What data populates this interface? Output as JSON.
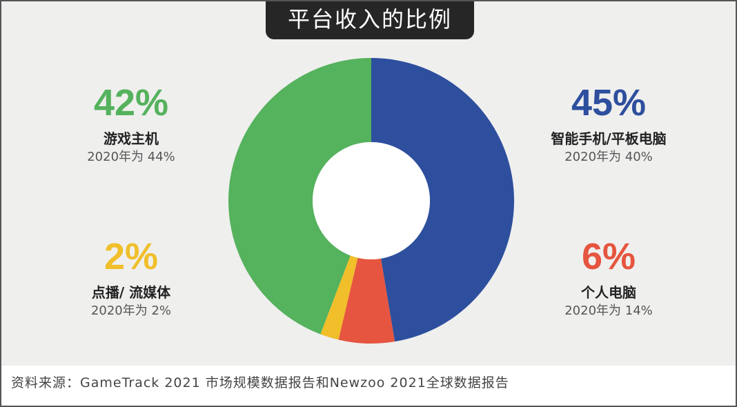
{
  "chart_data": {
    "type": "pie",
    "donut": true,
    "title": "平台收入的比例",
    "slices": [
      {
        "label": "智能手机/平板电脑",
        "value": 45,
        "prev_text": "2020年为 40%",
        "color": "#2e4f9e"
      },
      {
        "label": "个人电脑",
        "value": 6,
        "prev_text": "2020年为 14%",
        "color": "#e6553f"
      },
      {
        "label": "点播/ 流媒体",
        "value": 2,
        "prev_text": "2020年为 2%",
        "color": "#f0bf2a"
      },
      {
        "label": "游戏主机",
        "value": 42,
        "prev_text": "2020年为 44%",
        "color": "#55b25d"
      }
    ],
    "value_labels": [
      "45%",
      "6%",
      "2%",
      "42%"
    ],
    "source": "资料来源：GameTrack 2021 市场规模数据报告和Newzoo 2021全球数据报告"
  }
}
